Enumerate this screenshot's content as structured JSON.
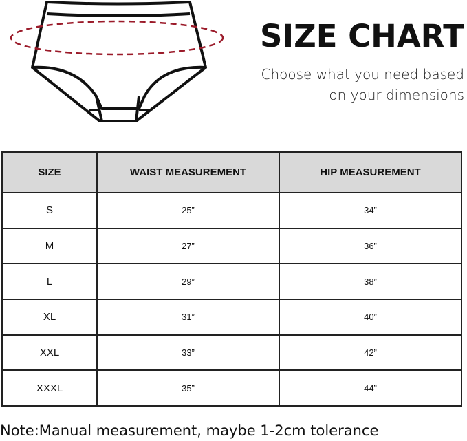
{
  "header": {
    "title": "SIZE CHART",
    "subtitle_line1": "Choose what you need based",
    "subtitle_line2": "on your dimensions"
  },
  "table": {
    "columns": [
      "SIZE",
      "WAIST MEASUREMENT",
      "HIP MEASUREMENT"
    ],
    "rows": [
      {
        "size": "S",
        "waist": "25”",
        "hip": "34”"
      },
      {
        "size": "M",
        "waist": "27”",
        "hip": "36”"
      },
      {
        "size": "L",
        "waist": "29”",
        "hip": "38”"
      },
      {
        "size": "XL",
        "waist": "31”",
        "hip": "40”"
      },
      {
        "size": "XXL",
        "waist": "33”",
        "hip": "42”"
      },
      {
        "size": "XXXL",
        "waist": "35”",
        "hip": "44”"
      }
    ]
  },
  "note": "Note:Manual measurement, maybe 1-2cm tolerance",
  "colors": {
    "measure_line": "#9b1b2a",
    "header_bg": "#d9d9d9"
  }
}
